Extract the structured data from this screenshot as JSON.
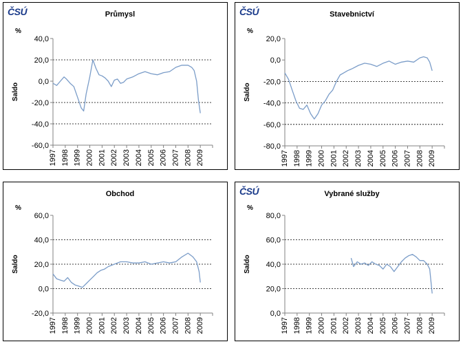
{
  "logo_text": "ČSÚ",
  "chart_data": [
    {
      "type": "line",
      "title": "Průmysl",
      "ylabel": "Saldo",
      "unit": "%",
      "show_logo": true,
      "ylim": [
        -60,
        40
      ],
      "yticks": [
        "-60,0",
        "-40,0",
        "-20,0",
        "0,0",
        "20,0",
        "40,0"
      ],
      "ytick_values": [
        -60,
        -40,
        -20,
        0,
        20,
        40
      ],
      "dashed_gridlines": [
        -40,
        -20,
        20
      ],
      "x_categories": [
        "1997",
        "1998",
        "1999",
        "2000",
        "2001",
        "2002",
        "2003",
        "2004",
        "2005",
        "2006",
        "2007",
        "2008",
        "2009"
      ],
      "series_color": "#7a9cc8",
      "x": [
        1997.0,
        1997.3,
        1997.6,
        1997.9,
        1998.1,
        1998.4,
        1998.7,
        1999.0,
        1999.3,
        1999.5,
        1999.7,
        2000.0,
        2000.25,
        2000.5,
        2000.75,
        2001.0,
        2001.25,
        2001.5,
        2001.75,
        2002.0,
        2002.25,
        2002.5,
        2002.75,
        2003.0,
        2003.5,
        2004.0,
        2004.5,
        2005.0,
        2005.5,
        2006.0,
        2006.5,
        2007.0,
        2007.5,
        2008.0,
        2008.3,
        2008.5,
        2008.7,
        2008.85,
        2009.0
      ],
      "values": [
        -2,
        -4,
        0,
        4,
        2,
        -2,
        -5,
        -15,
        -25,
        -28,
        -12,
        4,
        20,
        12,
        6,
        5,
        3,
        0,
        -5,
        1,
        2,
        -2,
        -1,
        2,
        4,
        7,
        9,
        7,
        6,
        8,
        9,
        13,
        15,
        15,
        13,
        10,
        0,
        -18,
        -30
      ]
    },
    {
      "type": "line",
      "title": "Stavebnictví",
      "ylabel": "Saldo",
      "unit": "%",
      "show_logo": true,
      "ylim": [
        -80,
        20
      ],
      "yticks": [
        "-80,0",
        "-60,0",
        "-40,0",
        "-20,0",
        "0,0",
        "20,0"
      ],
      "ytick_values": [
        -80,
        -60,
        -40,
        -20,
        0,
        20
      ],
      "dashed_gridlines": [
        -60,
        -40,
        -20
      ],
      "x_categories": [
        "1997",
        "1998",
        "1999",
        "2000",
        "2001",
        "2002",
        "2003",
        "2004",
        "2005",
        "2006",
        "2007",
        "2008",
        "2009"
      ],
      "series_color": "#7a9cc8",
      "x": [
        1997.0,
        1997.3,
        1997.6,
        1997.9,
        1998.2,
        1998.5,
        1998.8,
        1999.1,
        1999.4,
        1999.7,
        2000.0,
        2000.3,
        2000.6,
        2000.9,
        2001.2,
        2001.5,
        2001.8,
        2002.1,
        2002.5,
        2003.0,
        2003.5,
        2004.0,
        2004.5,
        2005.0,
        2005.5,
        2006.0,
        2006.5,
        2007.0,
        2007.5,
        2008.0,
        2008.3,
        2008.6,
        2008.8,
        2009.0
      ],
      "values": [
        -12,
        -18,
        -28,
        -38,
        -45,
        -46,
        -42,
        -50,
        -55,
        -50,
        -42,
        -38,
        -32,
        -28,
        -20,
        -14,
        -12,
        -10,
        -8,
        -5,
        -3,
        -4,
        -6,
        -3,
        -1,
        -4,
        -2,
        -1,
        -2,
        2,
        3,
        2,
        -2,
        -10
      ]
    },
    {
      "type": "line",
      "title": "Obchod",
      "ylabel": "Saldo",
      "unit": "%",
      "show_logo": false,
      "ylim": [
        -20,
        60
      ],
      "yticks": [
        "-20,0",
        "0,0",
        "20,0",
        "40,0",
        "60,0"
      ],
      "ytick_values": [
        -20,
        0,
        20,
        40,
        60
      ],
      "dashed_gridlines": [
        0,
        20,
        40
      ],
      "x_categories": [
        "1997",
        "1998",
        "1999",
        "2000",
        "2001",
        "2002",
        "2003",
        "2004",
        "2005",
        "2006",
        "2007",
        "2008",
        "2009"
      ],
      "series_color": "#7a9cc8",
      "x": [
        1997.0,
        1997.3,
        1997.6,
        1997.9,
        1998.2,
        1998.5,
        1998.8,
        1999.1,
        1999.4,
        1999.7,
        2000.0,
        2000.3,
        2000.6,
        2000.9,
        2001.2,
        2001.5,
        2002.0,
        2002.5,
        2003.0,
        2003.5,
        2004.0,
        2004.5,
        2005.0,
        2005.5,
        2006.0,
        2006.5,
        2007.0,
        2007.5,
        2008.0,
        2008.4,
        2008.7,
        2008.9,
        2009.0
      ],
      "values": [
        12,
        8,
        7,
        6,
        9,
        5,
        3,
        2,
        1,
        4,
        7,
        10,
        13,
        15,
        16,
        18,
        20,
        22,
        22,
        21,
        21,
        22,
        20,
        21,
        22,
        21,
        22,
        26,
        29,
        26,
        22,
        14,
        5
      ]
    },
    {
      "type": "line",
      "title": "Vybrané služby",
      "ylabel": "Saldo",
      "unit": "%",
      "show_logo": true,
      "ylim": [
        0,
        80
      ],
      "yticks": [
        "0,0",
        "20,0",
        "40,0",
        "60,0",
        "80,0"
      ],
      "ytick_values": [
        0,
        20,
        40,
        60,
        80
      ],
      "dashed_gridlines": [
        20,
        40,
        60
      ],
      "x_categories": [
        "1997",
        "1998",
        "1999",
        "2000",
        "2001",
        "2002",
        "2003",
        "2004",
        "2005",
        "2006",
        "2007",
        "2008",
        "2009"
      ],
      "series_color": "#7a9cc8",
      "x": [
        2002.4,
        2002.6,
        2002.9,
        2003.2,
        2003.5,
        2003.8,
        2004.1,
        2004.4,
        2004.7,
        2005.0,
        2005.3,
        2005.6,
        2005.9,
        2006.2,
        2006.5,
        2006.8,
        2007.1,
        2007.4,
        2007.7,
        2008.0,
        2008.3,
        2008.6,
        2008.8,
        2009.0
      ],
      "values": [
        45,
        38,
        42,
        40,
        41,
        39,
        42,
        40,
        39,
        36,
        40,
        38,
        34,
        38,
        42,
        45,
        47,
        48,
        46,
        43,
        43,
        40,
        36,
        16
      ]
    }
  ]
}
